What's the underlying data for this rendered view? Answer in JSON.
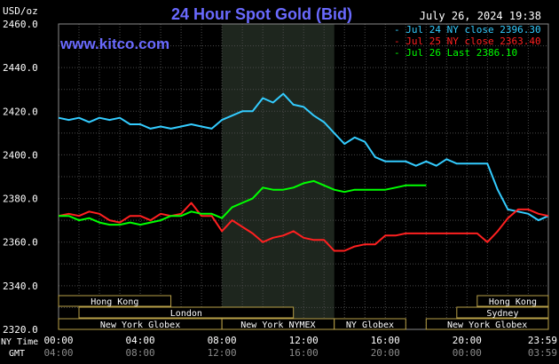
{
  "chart_data": {
    "type": "line",
    "title": "24 Hour Spot Gold (Bid)",
    "unit_label": "USD/oz",
    "source": "www.kitco.com",
    "timestamp": "July 26, 2024 19:38",
    "ylim": [
      2320,
      2460
    ],
    "y_ticks": [
      "2460.0",
      "2440.0",
      "2420.0",
      "2400.0",
      "2380.0",
      "2360.0",
      "2340.0",
      "2320.0"
    ],
    "y_tick_values": [
      2460,
      2440,
      2420,
      2400,
      2380,
      2360,
      2340,
      2320
    ],
    "x_axis_label_top": "NY Time",
    "x_axis_label_bottom": "GMT",
    "x_ticks_ny": [
      "00:00",
      "04:00",
      "08:00",
      "12:00",
      "16:00",
      "20:00",
      "23:59"
    ],
    "x_ticks_gmt": [
      "04:00",
      "08:00",
      "12:00",
      "16:00",
      "20:00",
      "00:00",
      "03:59"
    ],
    "x_tick_hours": [
      0,
      4,
      8,
      12,
      16,
      20,
      23.983
    ],
    "highlight_hours": [
      8,
      13.5
    ],
    "grid": true,
    "legend_position": "top-right",
    "sessions": [
      {
        "label": "Hong Kong",
        "start": 0,
        "end": 5.5,
        "row": 0
      },
      {
        "label": "London",
        "start": 1,
        "end": 11.5,
        "row": 1
      },
      {
        "label": "New York Globex",
        "start": 0,
        "end": 8,
        "row": 2
      },
      {
        "label": "New York NYMEX",
        "start": 8,
        "end": 13.5,
        "row": 2
      },
      {
        "label": "NY Globex",
        "start": 13.5,
        "end": 17,
        "row": 2
      },
      {
        "label": "Hong Kong",
        "start": 20.5,
        "end": 23.983,
        "row": 0
      },
      {
        "label": "Sydney",
        "start": 19.5,
        "end": 23.983,
        "row": 1
      },
      {
        "label": "New York Globex",
        "start": 18,
        "end": 23.983,
        "row": 2
      }
    ],
    "series": [
      {
        "name": "Jul 24 NY close 2396.30",
        "legend_label": "Jul 24 NY close 2396.30",
        "color": "#33ccff",
        "points": [
          [
            0,
            2417
          ],
          [
            0.5,
            2416
          ],
          [
            1,
            2417
          ],
          [
            1.5,
            2415
          ],
          [
            2,
            2417
          ],
          [
            2.5,
            2416
          ],
          [
            3,
            2417
          ],
          [
            3.5,
            2414
          ],
          [
            4,
            2414
          ],
          [
            4.5,
            2412
          ],
          [
            5,
            2413
          ],
          [
            5.5,
            2412
          ],
          [
            6,
            2413
          ],
          [
            6.5,
            2414
          ],
          [
            7,
            2413
          ],
          [
            7.5,
            2412
          ],
          [
            8,
            2416
          ],
          [
            8.5,
            2418
          ],
          [
            9,
            2420
          ],
          [
            9.5,
            2420
          ],
          [
            10,
            2426
          ],
          [
            10.5,
            2424
          ],
          [
            11,
            2428
          ],
          [
            11.5,
            2423
          ],
          [
            12,
            2422
          ],
          [
            12.5,
            2418
          ],
          [
            13,
            2415
          ],
          [
            13.5,
            2410
          ],
          [
            14,
            2405
          ],
          [
            14.5,
            2408
          ],
          [
            15,
            2406
          ],
          [
            15.5,
            2399
          ],
          [
            16,
            2397
          ],
          [
            16.5,
            2397
          ],
          [
            17,
            2397
          ],
          [
            17.5,
            2395
          ],
          [
            18,
            2397
          ],
          [
            18.5,
            2395
          ],
          [
            19,
            2398
          ],
          [
            19.5,
            2396
          ],
          [
            20,
            2396
          ],
          [
            20.5,
            2396
          ],
          [
            21,
            2396
          ],
          [
            21.5,
            2384
          ],
          [
            22,
            2375
          ],
          [
            22.5,
            2374
          ],
          [
            23,
            2373
          ],
          [
            23.5,
            2370
          ],
          [
            23.983,
            2372
          ]
        ]
      },
      {
        "name": "Jul 25 NY close 2363.40",
        "legend_label": "Jul 25 NY close 2363.40",
        "color": "#ff2020",
        "points": [
          [
            0,
            2372
          ],
          [
            0.5,
            2373
          ],
          [
            1,
            2372
          ],
          [
            1.5,
            2374
          ],
          [
            2,
            2373
          ],
          [
            2.5,
            2370
          ],
          [
            3,
            2369
          ],
          [
            3.5,
            2372
          ],
          [
            4,
            2372
          ],
          [
            4.5,
            2370
          ],
          [
            5,
            2373
          ],
          [
            5.5,
            2372
          ],
          [
            6,
            2373
          ],
          [
            6.5,
            2378
          ],
          [
            7,
            2372
          ],
          [
            7.5,
            2372
          ],
          [
            8,
            2365
          ],
          [
            8.5,
            2370
          ],
          [
            9,
            2367
          ],
          [
            9.5,
            2364
          ],
          [
            10,
            2360
          ],
          [
            10.5,
            2362
          ],
          [
            11,
            2363
          ],
          [
            11.5,
            2365
          ],
          [
            12,
            2362
          ],
          [
            12.5,
            2361
          ],
          [
            13,
            2361
          ],
          [
            13.5,
            2356
          ],
          [
            14,
            2356
          ],
          [
            14.5,
            2358
          ],
          [
            15,
            2359
          ],
          [
            15.5,
            2359
          ],
          [
            16,
            2363
          ],
          [
            16.5,
            2363
          ],
          [
            17,
            2364
          ],
          [
            17.5,
            2364
          ],
          [
            18,
            2364
          ],
          [
            18.5,
            2364
          ],
          [
            19,
            2364
          ],
          [
            19.5,
            2364
          ],
          [
            20,
            2364
          ],
          [
            20.5,
            2364
          ],
          [
            21,
            2360
          ],
          [
            21.5,
            2365
          ],
          [
            22,
            2371
          ],
          [
            22.5,
            2375
          ],
          [
            23,
            2375
          ],
          [
            23.5,
            2373
          ],
          [
            23.983,
            2372
          ]
        ]
      },
      {
        "name": "Jul 26 Last 2386.10",
        "legend_label": "Jul 26 Last 2386.10",
        "color": "#00ff00",
        "points": [
          [
            0,
            2372
          ],
          [
            0.5,
            2372
          ],
          [
            1,
            2370
          ],
          [
            1.5,
            2371
          ],
          [
            2,
            2369
          ],
          [
            2.5,
            2368
          ],
          [
            3,
            2368
          ],
          [
            3.5,
            2369
          ],
          [
            4,
            2368
          ],
          [
            4.5,
            2369
          ],
          [
            5,
            2370
          ],
          [
            5.5,
            2372
          ],
          [
            6,
            2372
          ],
          [
            6.5,
            2374
          ],
          [
            7,
            2373
          ],
          [
            7.5,
            2373
          ],
          [
            8,
            2371
          ],
          [
            8.5,
            2376
          ],
          [
            9,
            2378
          ],
          [
            9.5,
            2380
          ],
          [
            10,
            2385
          ],
          [
            10.5,
            2384
          ],
          [
            11,
            2384
          ],
          [
            11.5,
            2385
          ],
          [
            12,
            2387
          ],
          [
            12.5,
            2388
          ],
          [
            13,
            2386
          ],
          [
            13.5,
            2384
          ],
          [
            14,
            2383
          ],
          [
            14.5,
            2384
          ],
          [
            15,
            2384
          ],
          [
            15.5,
            2384
          ],
          [
            16,
            2384
          ],
          [
            16.5,
            2385
          ],
          [
            17,
            2386
          ],
          [
            17.5,
            2386
          ],
          [
            18,
            2386
          ]
        ]
      }
    ]
  }
}
